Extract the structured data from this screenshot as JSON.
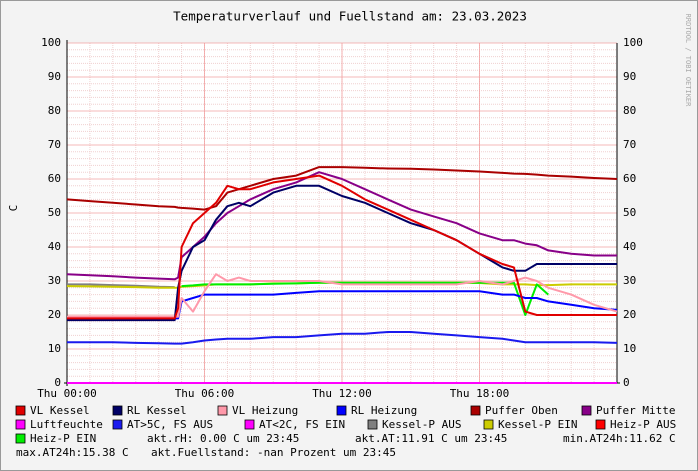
{
  "chart_data": {
    "type": "line",
    "title": "Temperaturverlauf und Fuellstand am: 23.03.2023",
    "y_label": "C",
    "watermark": "RRDTOOL / TOBI OETIKER",
    "x": [
      0,
      1,
      2,
      3,
      4,
      4.7,
      4.85,
      5,
      5.5,
      6,
      6.5,
      7,
      7.5,
      8,
      9,
      10,
      11,
      12,
      13,
      14,
      15,
      16,
      17,
      18,
      19,
      19.5,
      20,
      20.5,
      21,
      22,
      23,
      24
    ],
    "xlim": [
      0,
      24
    ],
    "xticks": [
      {
        "value": 0,
        "label": "Thu 00:00"
      },
      {
        "value": 6,
        "label": "Thu 06:00"
      },
      {
        "value": 12,
        "label": "Thu 12:00"
      },
      {
        "value": 18,
        "label": "Thu 18:00"
      }
    ],
    "ylim": [
      0,
      100
    ],
    "yticks": [
      0,
      10,
      20,
      30,
      40,
      50,
      60,
      70,
      80,
      90,
      100
    ],
    "grid": true,
    "series": [
      {
        "name": "VL Kessel",
        "color": "#e00000",
        "values": [
          19,
          19,
          19,
          19,
          19,
          19,
          22,
          40,
          47,
          50,
          53,
          58,
          57,
          57,
          59,
          60,
          61,
          58,
          54,
          51,
          48,
          45,
          42,
          38,
          35,
          34,
          21,
          20,
          20,
          20,
          20,
          20
        ]
      },
      {
        "name": "RL Kessel",
        "color": "#000066",
        "values": [
          18.5,
          18.5,
          18.5,
          18.5,
          18.5,
          18.5,
          28,
          33,
          40,
          42,
          48,
          52,
          53,
          52,
          56,
          58,
          58,
          55,
          53,
          50,
          47,
          45,
          42,
          38,
          34,
          33,
          33,
          35,
          35,
          35,
          35,
          35
        ]
      },
      {
        "name": "VL Heizung",
        "color": "#ff99aa",
        "values": [
          19.5,
          19.5,
          19.5,
          19.5,
          19.5,
          19.5,
          19.5,
          25,
          21,
          27,
          32,
          30,
          31,
          30,
          30,
          30,
          30,
          29,
          29,
          29,
          29,
          29,
          29,
          30,
          29,
          30,
          31,
          30,
          28,
          26,
          23,
          21
        ]
      },
      {
        "name": "RL Heizung",
        "color": "#0000ff",
        "values": [
          19,
          19,
          19,
          19,
          19,
          19,
          19,
          24,
          25,
          26,
          26,
          26,
          26,
          26,
          26,
          26.5,
          27,
          27,
          27,
          27,
          27,
          27,
          27,
          27,
          26,
          26,
          25,
          25,
          24,
          23,
          22,
          21.5
        ]
      },
      {
        "name": "Puffer Oben",
        "color": "#aa0000",
        "values": [
          54,
          53.5,
          53,
          52.5,
          52,
          51.8,
          51.6,
          51.5,
          51.3,
          51,
          52,
          56,
          57,
          58,
          60,
          61,
          63.5,
          63.5,
          63.3,
          63.1,
          63,
          62.8,
          62.5,
          62.2,
          61.8,
          61.6,
          61.5,
          61.3,
          61,
          60.7,
          60.3,
          60
        ]
      },
      {
        "name": "Puffer Mitte",
        "color": "#880088",
        "values": [
          32,
          31.7,
          31.4,
          31,
          30.7,
          30.5,
          31,
          37,
          40,
          43,
          47,
          50,
          52,
          54,
          57,
          59,
          62,
          60,
          57,
          54,
          51,
          49,
          47,
          44,
          42,
          42,
          41,
          40.5,
          39,
          38,
          37.5,
          37.5
        ]
      },
      {
        "name": "Luftfeuchte",
        "color": "#ff00ff",
        "values": [
          0,
          0,
          0,
          0,
          0,
          0,
          0,
          0,
          0,
          0,
          0,
          0,
          0,
          0,
          0,
          0,
          0,
          0,
          0,
          0,
          0,
          0,
          0,
          0,
          0,
          0,
          0,
          0,
          0,
          0,
          0,
          0
        ]
      },
      {
        "name": "AT>5C, FS AUS",
        "color": "#1a1aee",
        "values": [
          12,
          12,
          12,
          11.8,
          11.7,
          11.6,
          11.6,
          11.6,
          12,
          12.5,
          12.8,
          13,
          13,
          13,
          13.5,
          13.5,
          14,
          14.5,
          14.5,
          15,
          15,
          14.5,
          14,
          13.5,
          13,
          12.5,
          12,
          12,
          12,
          12,
          12,
          11.8
        ]
      },
      {
        "name": "AT<2C, FS EIN",
        "color": "#ff00ff",
        "values": [
          null,
          null,
          null,
          null,
          null,
          null,
          null,
          null,
          null,
          null,
          null,
          null,
          null,
          null,
          null,
          null,
          null,
          null,
          null,
          null,
          null,
          null,
          null,
          null,
          null,
          null,
          null,
          null,
          null,
          null,
          null,
          null
        ]
      },
      {
        "name": "Kessel-P AUS",
        "color": "#808080",
        "values": [
          29,
          29,
          28.8,
          28.6,
          28.3,
          28.2,
          null,
          null,
          null,
          null,
          null,
          null,
          null,
          null,
          null,
          null,
          null,
          null,
          null,
          null,
          null,
          null,
          null,
          null,
          null,
          null,
          null,
          null,
          null,
          null,
          null,
          null
        ]
      },
      {
        "name": "Kessel-P EIN",
        "color": "#cccc00",
        "values": [
          28.5,
          28.4,
          28.3,
          28.2,
          28,
          28,
          28,
          28.3,
          28.5,
          28.7,
          29,
          29,
          29,
          29,
          29.3,
          29.3,
          29.5,
          29.5,
          29.5,
          29.5,
          29.5,
          29.5,
          29.5,
          29.4,
          29,
          29,
          29,
          28.8,
          28.8,
          29,
          29,
          29
        ]
      },
      {
        "name": "Heiz-P AUS",
        "color": "#ff0000",
        "values": [
          null,
          null,
          null,
          null,
          null,
          null,
          null,
          null,
          null,
          null,
          null,
          null,
          null,
          null,
          null,
          null,
          null,
          null,
          null,
          null,
          null,
          null,
          null,
          null,
          null,
          null,
          null,
          null,
          null,
          null,
          null,
          null
        ]
      },
      {
        "name": "Heiz-P EIN",
        "color": "#00ee00",
        "values": [
          null,
          null,
          null,
          null,
          null,
          null,
          null,
          28.5,
          28.7,
          29,
          29,
          29,
          29,
          29,
          29.2,
          29.3,
          29.5,
          29.5,
          29.5,
          29.5,
          29.5,
          29.5,
          29.5,
          29.5,
          29.5,
          29.5,
          20,
          29,
          26,
          null,
          null,
          null
        ]
      }
    ],
    "info": [
      "akt.rH: 0.00 C um 23:45",
      "akt.AT:11.91 C um 23:45",
      "min.AT24h:11.62 C",
      "max.AT24h:15.38 C",
      "akt.Fuellstand: -nan Prozent um 23:45"
    ]
  }
}
